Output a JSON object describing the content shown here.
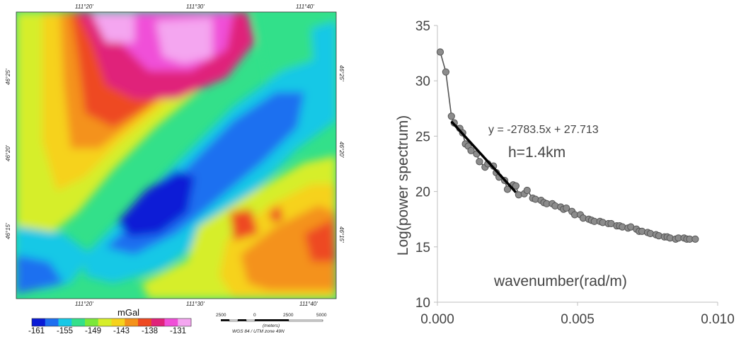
{
  "map": {
    "top_ticks": [
      "111°20'",
      "111°30'",
      "111°40'"
    ],
    "bottom_ticks": [
      "111°20'",
      "111°30'",
      "111°40'"
    ],
    "left_ticks": [
      "46°25'",
      "46°20'",
      "46°15'"
    ],
    "right_ticks": [
      "46°25'",
      "46°20'",
      "46°15'"
    ],
    "colorbar": {
      "title": "mGal",
      "labels": [
        "-161",
        "-155",
        "-149",
        "-143",
        "-138",
        "-131"
      ],
      "colors": [
        "#0a1bd6",
        "#1f6ff0",
        "#16c8e6",
        "#33e08a",
        "#7be83a",
        "#d6ee2a",
        "#f6d21c",
        "#f4921a",
        "#ee4a22",
        "#e0227a",
        "#f04fd8",
        "#f4a6f0"
      ]
    },
    "scalebar": {
      "labels": [
        "2500",
        "0",
        "2500",
        "5000"
      ],
      "unit": "(meters)",
      "projection": "WGS 84 / UTM zone 49N"
    }
  },
  "chart_data": {
    "type": "scatter",
    "xlabel": "wavenumber(rad/m)",
    "ylabel": "Log(power spectrum)",
    "xlim": [
      0,
      0.01
    ],
    "ylim": [
      10,
      35
    ],
    "x_ticks": [
      "0.000",
      "0.005",
      "0.010"
    ],
    "y_ticks": [
      "10",
      "15",
      "20",
      "25",
      "30",
      "35"
    ],
    "grid": false,
    "series": [
      {
        "x": [
          0.0001,
          0.0003,
          0.0005,
          0.0006,
          0.0008,
          0.0009,
          0.001,
          0.0011,
          0.0012,
          0.0014,
          0.0015,
          0.0017,
          0.0018,
          0.002,
          0.0021,
          0.0022,
          0.0024,
          0.0025,
          0.0027,
          0.0028,
          0.0029,
          0.0031,
          0.0032,
          0.0034,
          0.0035,
          0.0037,
          0.0038,
          0.0039,
          0.0041,
          0.0042,
          0.0044,
          0.0045,
          0.0046,
          0.0048,
          0.0049,
          0.0051,
          0.0052,
          0.0054,
          0.0055,
          0.0056,
          0.0058,
          0.0059,
          0.0061,
          0.0062,
          0.0064,
          0.0065,
          0.0066,
          0.0068,
          0.0069,
          0.0071,
          0.0072,
          0.0073,
          0.0075,
          0.0076,
          0.0078,
          0.0079,
          0.0081,
          0.0082,
          0.0083,
          0.0085,
          0.0086,
          0.0088,
          0.0089,
          0.009,
          0.0092
        ],
        "y": [
          32.6,
          30.8,
          26.8,
          26.2,
          25.7,
          25.3,
          24.3,
          24.1,
          23.7,
          23.4,
          22.7,
          22.2,
          22.5,
          22.3,
          21.7,
          21.3,
          21.0,
          20.2,
          20.6,
          20.5,
          19.7,
          19.8,
          20.1,
          19.4,
          19.3,
          19.2,
          19.0,
          18.9,
          18.9,
          18.7,
          18.6,
          18.4,
          18.5,
          18.2,
          17.9,
          17.9,
          17.6,
          17.5,
          17.4,
          17.3,
          17.3,
          17.2,
          17.1,
          17.1,
          16.9,
          16.9,
          16.8,
          16.7,
          16.8,
          16.6,
          16.4,
          16.4,
          16.3,
          16.2,
          16.1,
          16.0,
          15.9,
          15.9,
          15.8,
          15.7,
          15.8,
          15.8,
          15.7,
          15.7,
          15.7
        ]
      }
    ],
    "trendline": {
      "x_start": 0.0005,
      "x_end": 0.0028,
      "slope": -2783.5,
      "intercept": 27.713
    },
    "annotations": [
      "y = -2783.5x + 27.713",
      "h=1.4km"
    ]
  }
}
